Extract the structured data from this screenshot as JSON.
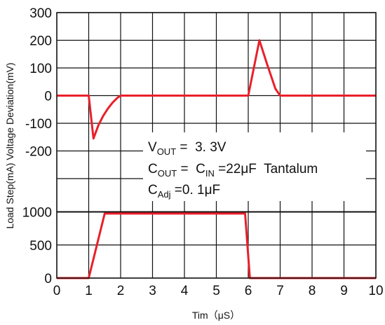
{
  "chart_data": {
    "type": "line",
    "x": [
      0,
      1,
      2,
      3,
      4,
      5,
      6,
      7,
      8,
      9,
      10
    ],
    "x_tick_labels": [
      "0",
      "1",
      "2",
      "3",
      "4",
      "5",
      "6",
      "7",
      "8",
      "9",
      "10"
    ],
    "xlabel": "Tim（μS）",
    "xlim": [
      0,
      10
    ],
    "ylabel": "Load Step(mA) Voltage Deviation(mV)",
    "grid": true,
    "upper_panel": {
      "y_tick_labels": [
        "300",
        "200",
        "100",
        "0",
        "-100",
        "-200"
      ],
      "ylim": [
        -300,
        300
      ],
      "unit": "mV"
    },
    "lower_panel": {
      "y_tick_labels": [
        "1000",
        "500",
        "0"
      ],
      "ylim": [
        0,
        1000
      ],
      "unit": "mA"
    },
    "series": [
      {
        "panel": "upper",
        "color": "#e8202a",
        "points": [
          [
            0,
            0
          ],
          [
            1.0,
            0
          ],
          [
            1.15,
            -155
          ],
          [
            1.3,
            -108
          ],
          [
            1.45,
            -74
          ],
          [
            1.6,
            -47
          ],
          [
            1.75,
            -25
          ],
          [
            1.9,
            -8
          ],
          [
            2.0,
            0
          ],
          [
            6.0,
            0
          ],
          [
            6.35,
            200
          ],
          [
            6.6,
            110
          ],
          [
            6.85,
            25
          ],
          [
            7.0,
            0
          ],
          [
            10,
            0
          ]
        ]
      },
      {
        "panel": "lower",
        "color": "#e8202a",
        "points": [
          [
            0,
            0
          ],
          [
            1.0,
            0
          ],
          [
            1.5,
            975
          ],
          [
            5.9,
            975
          ],
          [
            6.05,
            0
          ],
          [
            10,
            0
          ]
        ]
      }
    ],
    "annotation": {
      "line1": {
        "main": "V",
        "sub": "OUT",
        "rest": " =  3. 3V"
      },
      "line2": {
        "main": "C",
        "sub": "OUT",
        "rest": " =  C",
        "sub2": "IN",
        "rest2": " =22μF  Tantalum"
      },
      "line3": {
        "main": "C",
        "sub": "Adj",
        "rest": " =0. 1μF"
      }
    }
  }
}
